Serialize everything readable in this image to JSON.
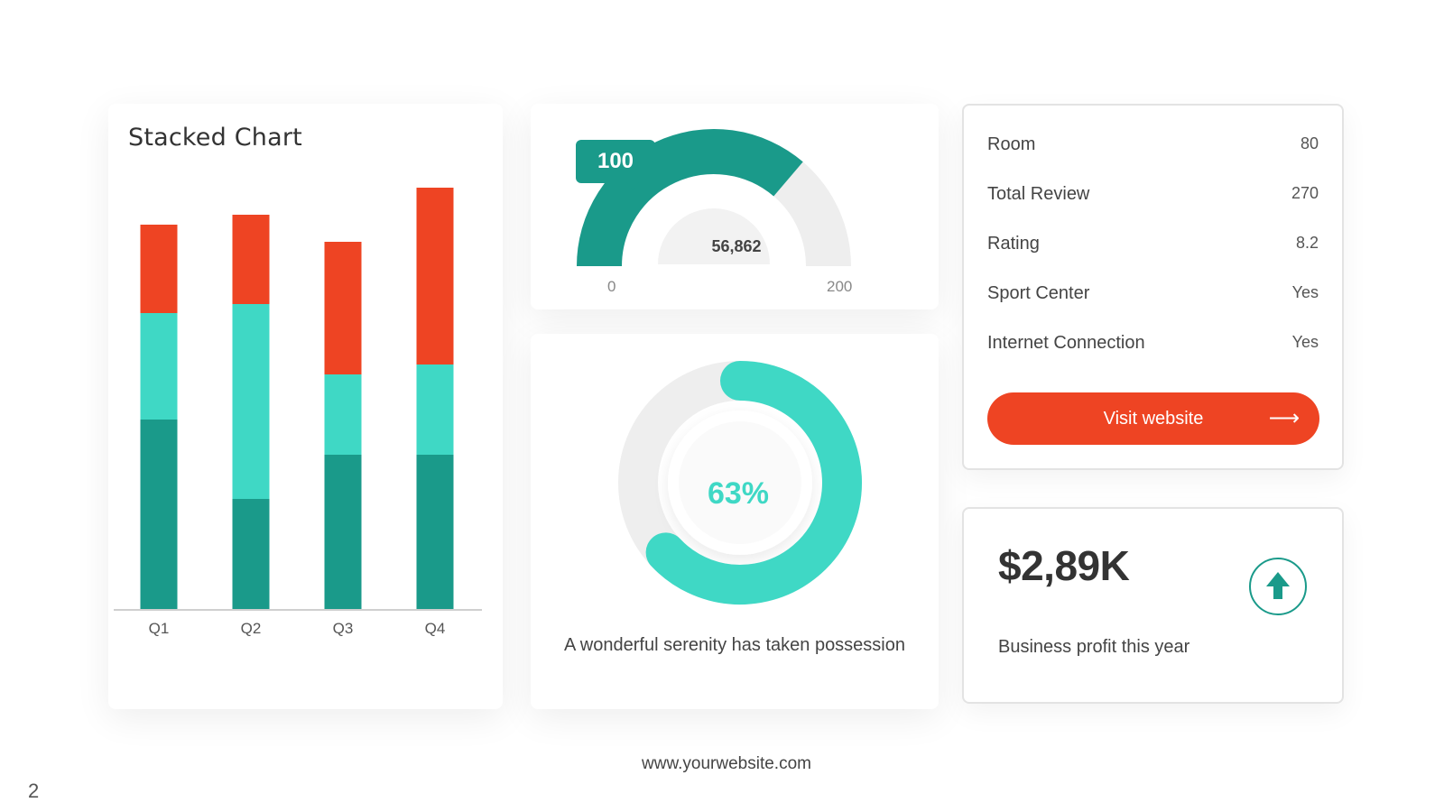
{
  "chart_data": {
    "type": "bar",
    "title": "Stacked Chart",
    "categories": [
      "Q1",
      "Q2",
      "Q3",
      "Q4"
    ],
    "series": [
      {
        "color": "#1a9a8a",
        "values": [
          210,
          122,
          171,
          171
        ]
      },
      {
        "color": "#3fd8c5",
        "values": [
          118,
          216,
          89,
          100
        ]
      },
      {
        "color": "#ee4423",
        "values": [
          98,
          99,
          147,
          196
        ]
      }
    ],
    "ylim": [
      0,
      480
    ]
  },
  "gauge": {
    "tooltip_value": "100",
    "center_value": "56,862",
    "min_label": "0",
    "max_label": "200",
    "value": 100,
    "min": 0,
    "max": 200,
    "fill_color": "#1a9a8a",
    "track_color": "#eeeeee"
  },
  "donut": {
    "percent_label": "63%",
    "percent": 63,
    "caption": "A wonderful serenity has taken possession",
    "fill_color": "#3fd8c5",
    "track_color": "#eeeeee"
  },
  "stats": {
    "rows": [
      {
        "label": "Room",
        "value": "80"
      },
      {
        "label": "Total Review",
        "value": "270"
      },
      {
        "label": "Rating",
        "value": "8.2"
      },
      {
        "label": "Sport Center",
        "value": "Yes"
      },
      {
        "label": "Internet Connection",
        "value": "Yes"
      }
    ],
    "button_label": "Visit website",
    "button_icon": "arrow-right-icon",
    "button_color": "#ee4423"
  },
  "profit": {
    "value": "$2,89K",
    "caption": "Business profit this year",
    "icon": "arrow-up-icon"
  },
  "footer": {
    "url": "www.yourwebsite.com",
    "page_number": "2"
  }
}
